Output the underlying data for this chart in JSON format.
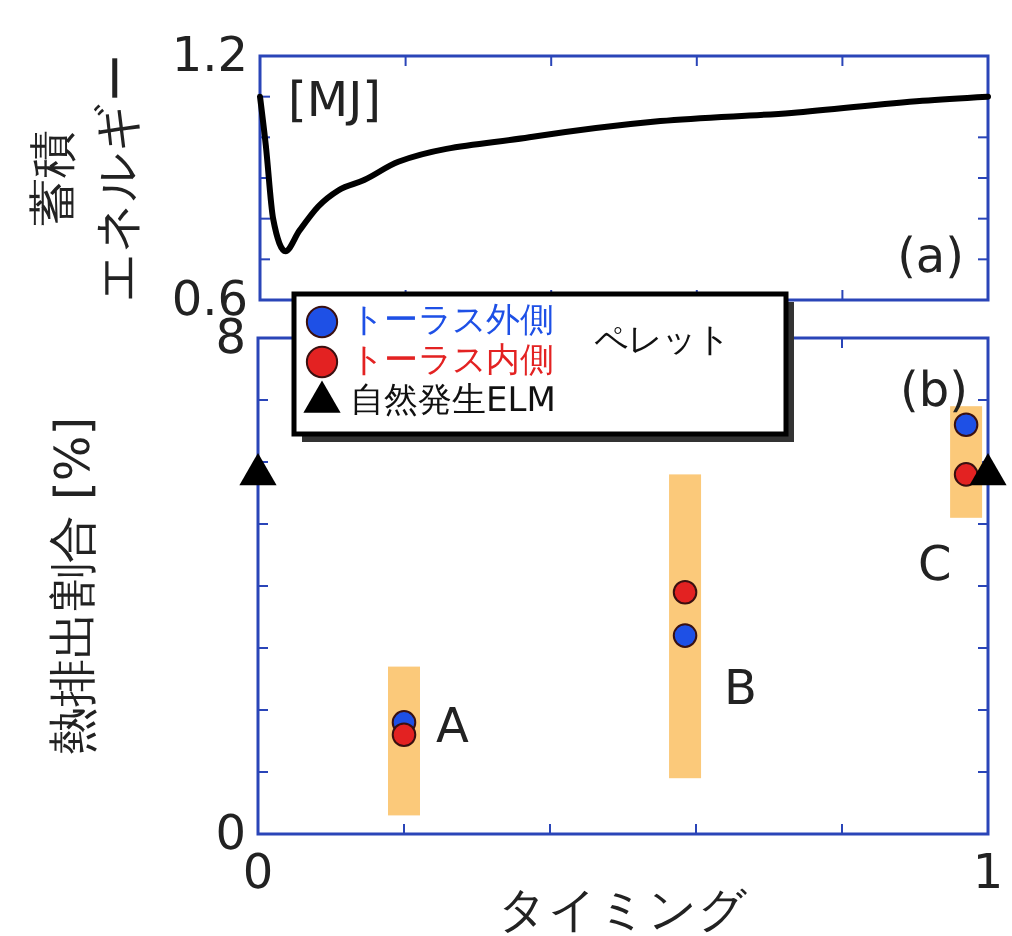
{
  "chart_data": [
    {
      "type": "line",
      "ylabel": "蓄積エネルギー",
      "annotations": [
        "[MJ]",
        "(a)"
      ],
      "tick_labels": "y",
      "xlim": [
        0,
        1
      ],
      "xticks": [
        {
          "value": 0,
          "label": null
        },
        {
          "value": 0.2,
          "label": null
        },
        {
          "value": 0.4,
          "label": null
        },
        {
          "value": 0.6,
          "label": null
        },
        {
          "value": 0.8,
          "label": null
        },
        {
          "value": 1,
          "label": null
        }
      ],
      "ylim": [
        0.6,
        1.2
      ],
      "yticks": [
        0.6,
        {
          "value": 0.7,
          "label": null
        },
        {
          "value": 0.8,
          "label": null
        },
        {
          "value": 0.9,
          "label": null
        },
        {
          "value": 1.0,
          "label": null
        },
        {
          "value": 1.1,
          "label": null
        },
        1.2
      ],
      "series": [
        {
          "color": "#000000",
          "x": [
            0,
            0.008,
            0.018,
            0.035,
            0.054,
            0.08,
            0.108,
            0.143,
            0.19,
            0.37,
            0.55,
            0.73,
            0.91,
            1
          ],
          "values": [
            1.1,
            0.98,
            0.8,
            0.72,
            0.77,
            0.83,
            0.87,
            0.895,
            0.94,
            1.0,
            1.04,
            1.06,
            1.09,
            1.1
          ]
        }
      ]
    },
    {
      "type": "scatter",
      "xlabel": "タイミング",
      "ylabel": "熱排出割合 [%]",
      "legend_title": "ペレット",
      "legend": "top left",
      "annotations": [
        "(b)",
        "A",
        "B",
        "C"
      ],
      "xlim": [
        0,
        1
      ],
      "xticks": [
        0,
        {
          "value": 0.2,
          "label": null
        },
        {
          "value": 0.4,
          "label": null
        },
        {
          "value": 0.6,
          "label": null
        },
        {
          "value": 0.8,
          "label": null
        },
        1
      ],
      "ylim": [
        0,
        8
      ],
      "yticks": [
        0,
        {
          "value": 1,
          "label": null
        },
        {
          "value": 2,
          "label": null
        },
        {
          "value": 3,
          "label": null
        },
        {
          "value": 4,
          "label": null
        },
        {
          "value": 5,
          "label": null
        },
        {
          "value": 6,
          "label": null
        },
        {
          "value": 7,
          "label": null
        },
        8
      ],
      "series": [
        {
          "type": "bar",
          "color": "#fbc97a",
          "x": [
            0.2,
            0.585,
            0.97
          ],
          "base": [
            0.3,
            0.9,
            5.1
          ],
          "values": [
            2.4,
            4.9,
            1.8
          ]
        },
        {
          "name": "トーラス外側",
          "color": "#1e50e6",
          "marker": "circle",
          "x": [
            0.2,
            0.585,
            0.97
          ],
          "values": [
            1.8,
            3.2,
            6.6
          ]
        },
        {
          "name": "トーラス内側",
          "color": "#e32222",
          "marker": "circle",
          "x": [
            0.2,
            0.585,
            0.97
          ],
          "values": [
            1.6,
            3.9,
            5.8
          ]
        },
        {
          "name": "自然発生ELM",
          "color": "#000000",
          "marker": "triangle",
          "x": [
            0,
            1
          ],
          "values": [
            5.8,
            5.8
          ]
        }
      ]
    }
  ]
}
